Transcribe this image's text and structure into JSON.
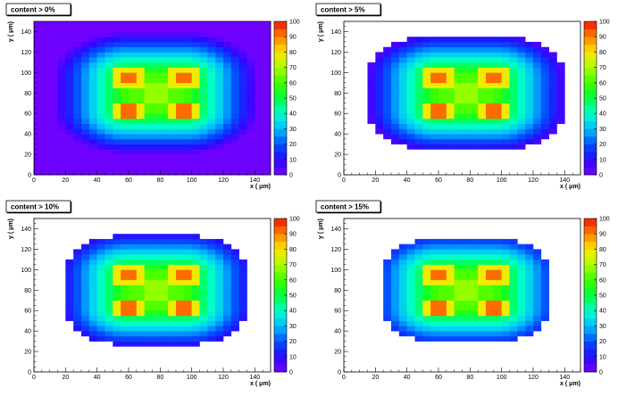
{
  "panels": [
    {
      "title": "content > 0%",
      "threshold": 0
    },
    {
      "title": "content > 5%",
      "threshold": 5
    },
    {
      "title": "content > 10%",
      "threshold": 10
    },
    {
      "title": "content > 15%",
      "threshold": 15
    }
  ],
  "chart_data": {
    "type": "heatmap",
    "xlabel": "x ( μm)",
    "ylabel": "y ( μm)",
    "xlim": [
      0,
      150
    ],
    "ylim": [
      0,
      150
    ],
    "xticks": [
      "0",
      "20",
      "40",
      "60",
      "80",
      "100",
      "120",
      "140"
    ],
    "yticks": [
      "0",
      "20",
      "40",
      "60",
      "80",
      "100",
      "120",
      "140"
    ],
    "zlim": [
      0,
      100
    ],
    "zticks": [
      "0",
      "10",
      "20",
      "30",
      "40",
      "50",
      "60",
      "70",
      "80",
      "90",
      "100"
    ],
    "bin_size": 5,
    "center": [
      77.5,
      80
    ],
    "hotspots": [
      [
        60,
        95
      ],
      [
        95,
        95
      ],
      [
        60,
        62
      ],
      [
        95,
        62
      ]
    ],
    "frame_color": "#7700ff"
  }
}
